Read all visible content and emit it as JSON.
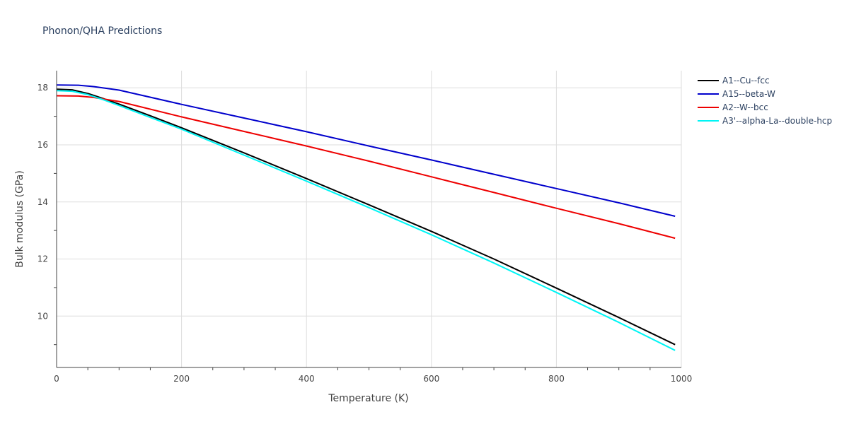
{
  "chart_data": {
    "type": "line",
    "title": "Phonon/QHA Predictions",
    "xlabel": "Temperature (K)",
    "ylabel": "Bulk modulus (GPa)",
    "xlim": [
      0,
      1000
    ],
    "ylim": [
      8.2,
      18.6
    ],
    "xticks": [
      0,
      200,
      400,
      600,
      800,
      1000
    ],
    "yticks": [
      10,
      12,
      14,
      16,
      18
    ],
    "grid": true,
    "legend_position": "top-right",
    "series": [
      {
        "name": "A1--Cu--fcc",
        "color": "#000000",
        "x": [
          0,
          25,
          50,
          75,
          100,
          150,
          200,
          300,
          400,
          500,
          600,
          700,
          800,
          900,
          990
        ],
        "y": [
          17.95,
          17.93,
          17.8,
          17.62,
          17.43,
          17.02,
          16.6,
          15.72,
          14.82,
          13.9,
          12.97,
          12.0,
          10.98,
          9.95,
          9.0
        ]
      },
      {
        "name": "A15--beta-W",
        "color": "#0000cc",
        "x": [
          0,
          35,
          60,
          100,
          200,
          300,
          400,
          500,
          600,
          700,
          800,
          900,
          990
        ],
        "y": [
          18.1,
          18.09,
          18.04,
          17.92,
          17.42,
          16.94,
          16.46,
          15.96,
          15.47,
          14.97,
          14.47,
          13.97,
          13.5
        ]
      },
      {
        "name": "A2--W--bcc",
        "color": "#ee0000",
        "x": [
          0,
          35,
          60,
          100,
          200,
          300,
          400,
          500,
          600,
          700,
          800,
          900,
          990
        ],
        "y": [
          17.72,
          17.71,
          17.66,
          17.52,
          16.98,
          16.47,
          15.96,
          15.43,
          14.88,
          14.33,
          13.78,
          13.24,
          12.73
        ]
      },
      {
        "name": "A3'--alpha-La--double-hcp",
        "color": "#00f5f5",
        "x": [
          0,
          25,
          50,
          75,
          100,
          150,
          200,
          300,
          400,
          500,
          600,
          700,
          800,
          900,
          990
        ],
        "y": [
          17.9,
          17.88,
          17.76,
          17.58,
          17.38,
          16.96,
          16.55,
          15.64,
          14.73,
          13.8,
          12.85,
          11.86,
          10.83,
          9.78,
          8.8
        ]
      }
    ]
  }
}
